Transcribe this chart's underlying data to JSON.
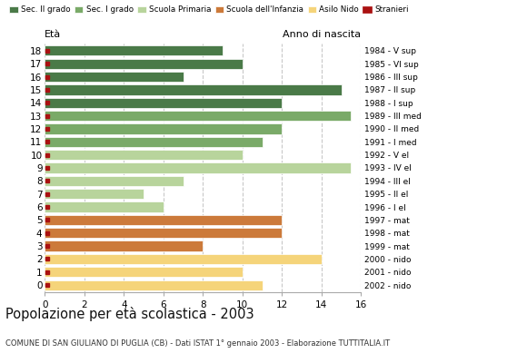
{
  "ages": [
    18,
    17,
    16,
    15,
    14,
    13,
    12,
    11,
    10,
    9,
    8,
    7,
    6,
    5,
    4,
    3,
    2,
    1,
    0
  ],
  "anno_nascita": [
    "1984 - V sup",
    "1985 - VI sup",
    "1986 - III sup",
    "1987 - II sup",
    "1988 - I sup",
    "1989 - III med",
    "1990 - II med",
    "1991 - I med",
    "1992 - V el",
    "1993 - IV el",
    "1994 - III el",
    "1995 - II el",
    "1996 - I el",
    "1997 - mat",
    "1998 - mat",
    "1999 - mat",
    "2000 - nido",
    "2001 - nido",
    "2002 - nido"
  ],
  "values": [
    9,
    10,
    7,
    15,
    12,
    15.5,
    12,
    11,
    10,
    15.5,
    7,
    5,
    6,
    12,
    12,
    8,
    14,
    10,
    11
  ],
  "colors": [
    "#4a7a48",
    "#4a7a48",
    "#4a7a48",
    "#4a7a48",
    "#4a7a48",
    "#7aaa68",
    "#7aaa68",
    "#7aaa68",
    "#b8d49c",
    "#b8d49c",
    "#b8d49c",
    "#b8d49c",
    "#b8d49c",
    "#cc7a3a",
    "#cc7a3a",
    "#cc7a3a",
    "#f5d47a",
    "#f5d47a",
    "#f5d47a"
  ],
  "legend_labels": [
    "Sec. II grado",
    "Sec. I grado",
    "Scuola Primaria",
    "Scuola dell'Infanzia",
    "Asilo Nido",
    "Stranieri"
  ],
  "legend_colors": [
    "#4a7a48",
    "#7aaa68",
    "#b8d49c",
    "#cc7a3a",
    "#f5d47a",
    "#aa1111"
  ],
  "title": "Popolazione per età scolastica - 2003",
  "subtitle": "COMUNE DI SAN GIULIANO DI PUGLIA (CB) - Dati ISTAT 1° gennaio 2003 - Elaborazione TUTTITALIA.IT",
  "xlim": [
    0,
    16
  ],
  "xticks": [
    0,
    2,
    4,
    6,
    8,
    10,
    12,
    14,
    16
  ],
  "ylabel_eta": "Età",
  "ylabel_anno": "Anno di nascita",
  "bar_height": 0.78,
  "background_color": "#ffffff",
  "grid_color": "#c8c8c8",
  "stranieri_color": "#aa1111"
}
